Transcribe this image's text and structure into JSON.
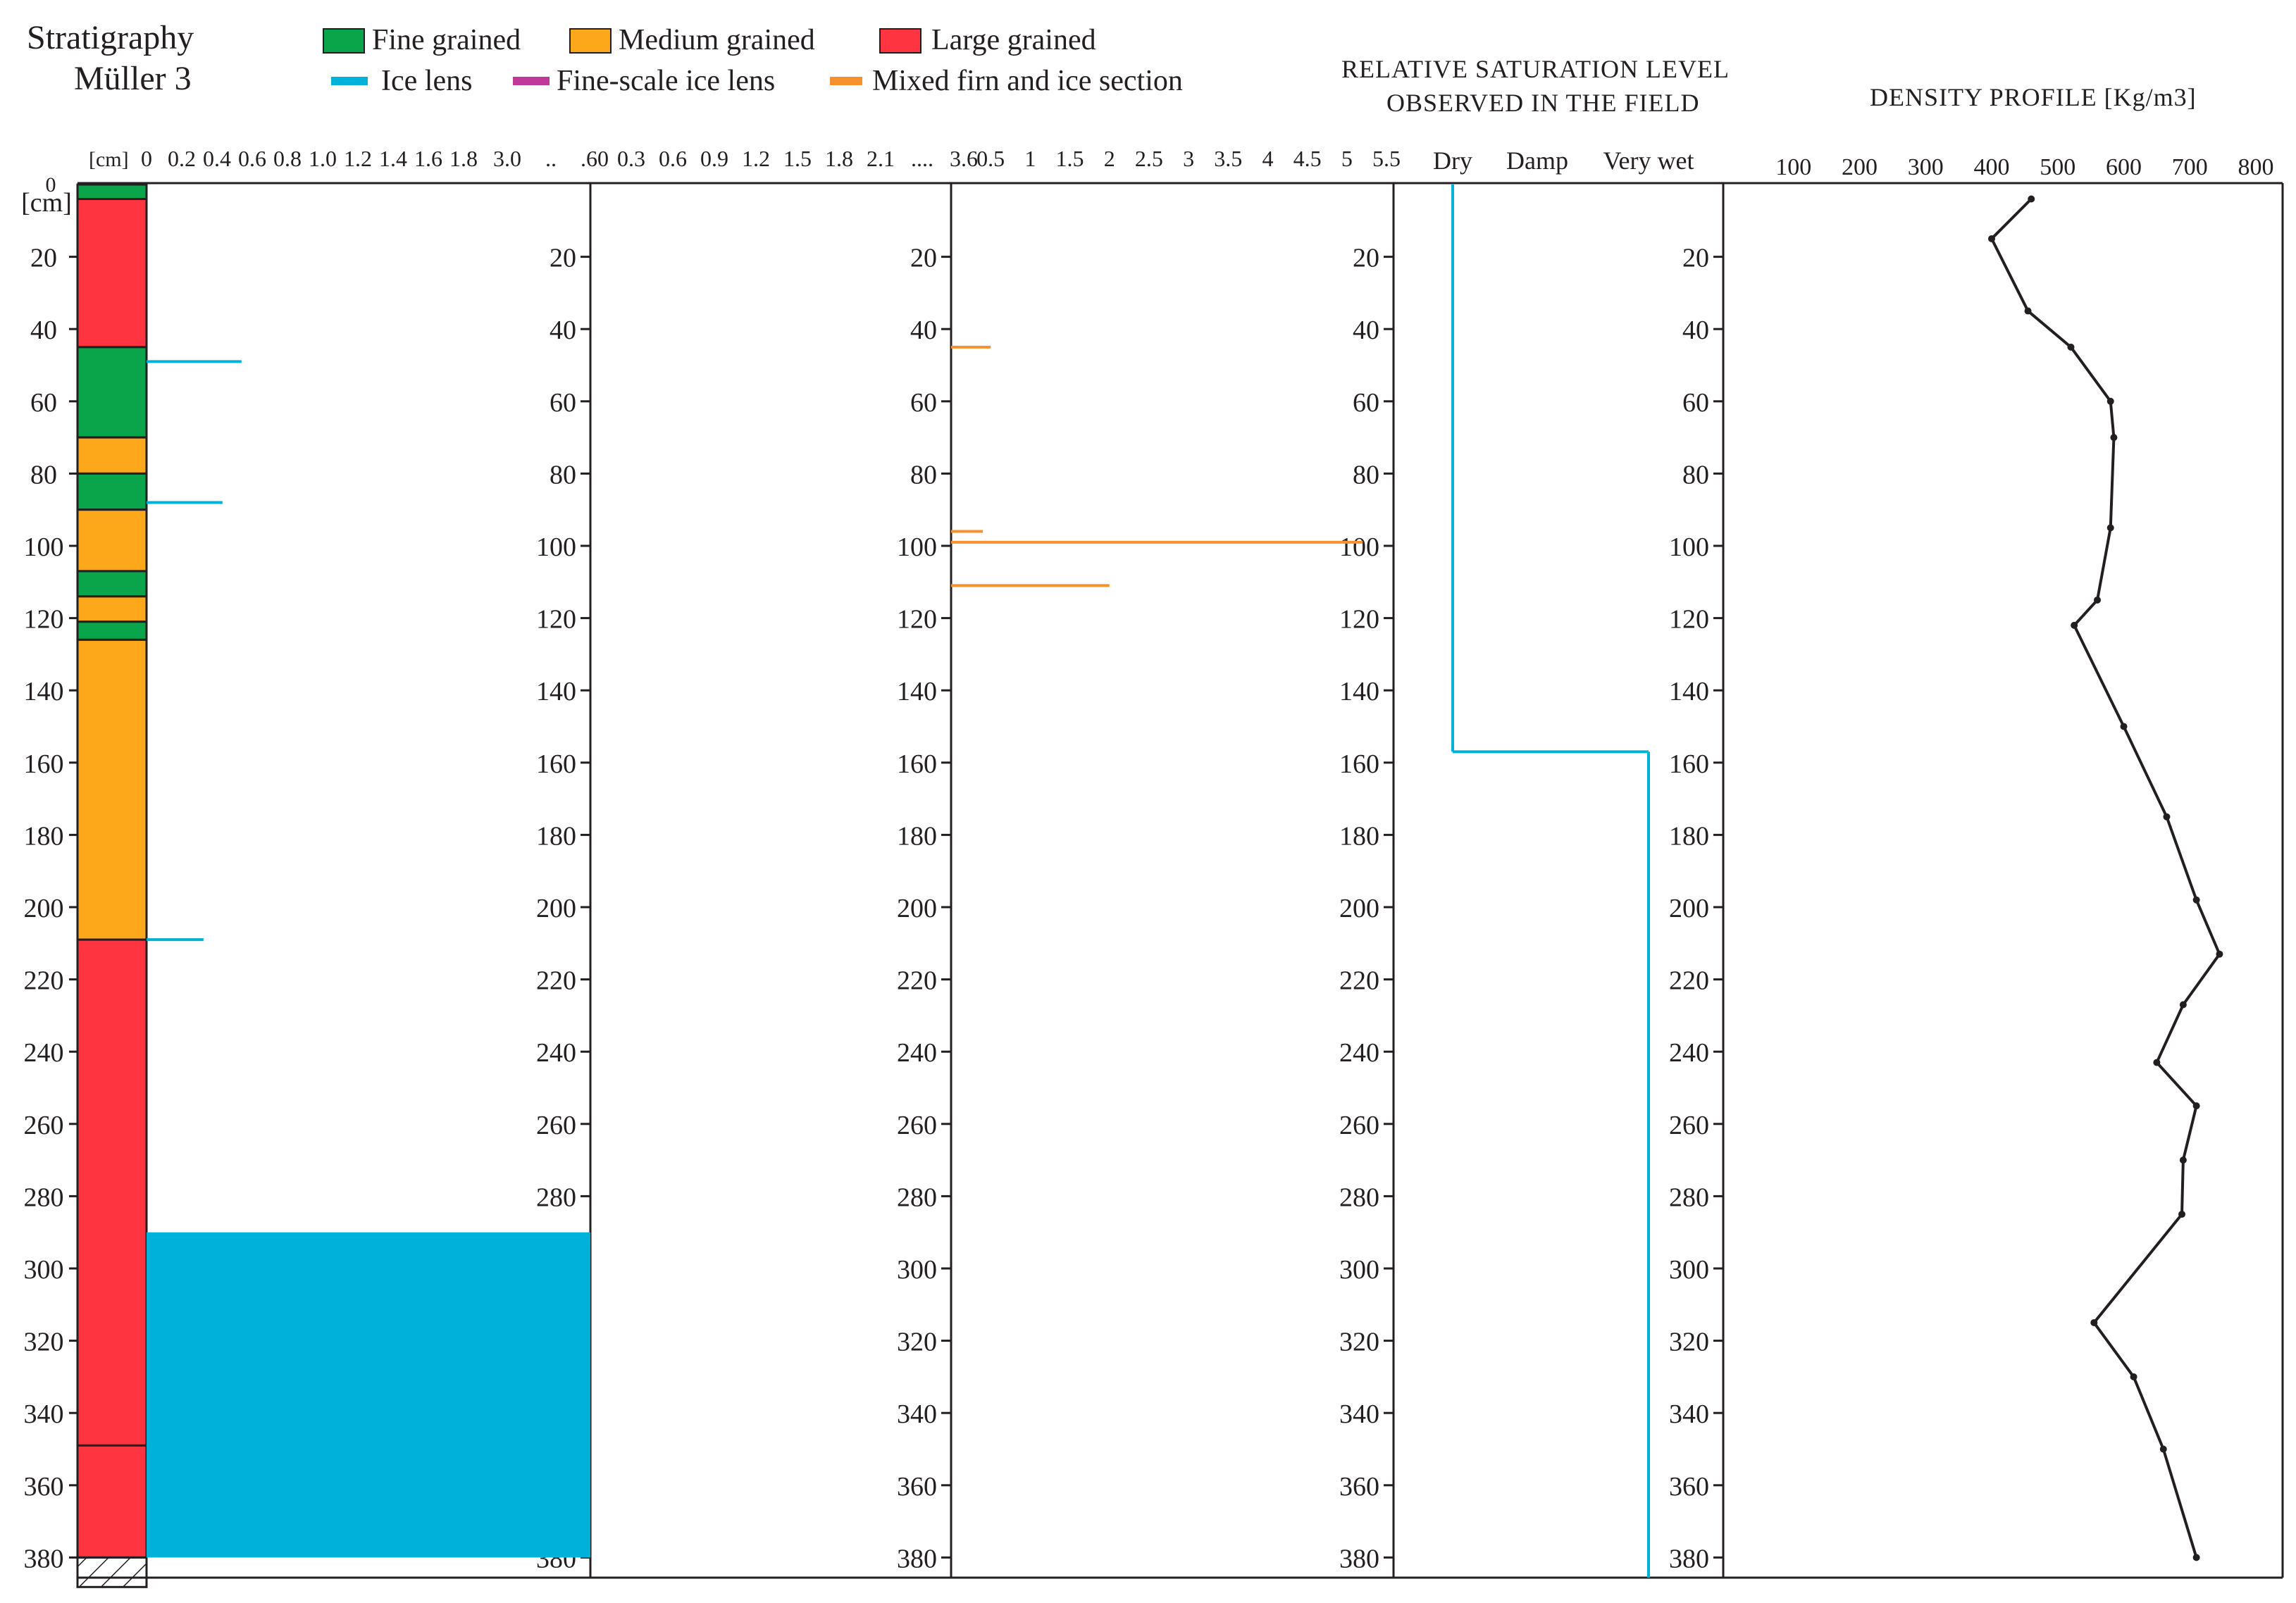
{
  "title": {
    "line1": "Stratigraphy",
    "line2": "Müller 3"
  },
  "legend": {
    "fine": "Fine grained",
    "medium": "Medium grained",
    "large": "Large grained",
    "ice_lens": "Ice lens",
    "fine_ice_lens": "Fine-scale ice lens",
    "mixed": "Mixed firn and ice section"
  },
  "colors": {
    "fine": "#0aa44a",
    "medium": "#fda81a",
    "large": "#fe3440",
    "ice_lens": "#00b2d9",
    "fine_ice_lens": "#c0399a",
    "mixed": "#f7902f",
    "ink": "#231f20"
  },
  "headers": {
    "saturation1": "RELATIVE SATURATION LEVEL",
    "saturation2": "OBSERVED IN THE FIELD",
    "density": "DENSITY PROFILE [Kg/m3]"
  },
  "chart_data": {
    "type": "profile",
    "depth_unit": "[cm]",
    "depth_top_label": "0",
    "depth_ticks": [
      20,
      40,
      60,
      80,
      100,
      120,
      140,
      160,
      180,
      200,
      220,
      240,
      260,
      280,
      300,
      320,
      340,
      360,
      380
    ],
    "stratigraphy": {
      "layers": [
        {
          "top": 0,
          "bottom": 4,
          "grain": "fine"
        },
        {
          "top": 4,
          "bottom": 45,
          "grain": "large"
        },
        {
          "top": 45,
          "bottom": 70,
          "grain": "fine"
        },
        {
          "top": 70,
          "bottom": 80,
          "grain": "medium"
        },
        {
          "top": 80,
          "bottom": 90,
          "grain": "fine"
        },
        {
          "top": 90,
          "bottom": 107,
          "grain": "medium"
        },
        {
          "top": 107,
          "bottom": 114,
          "grain": "fine"
        },
        {
          "top": 114,
          "bottom": 121,
          "grain": "medium"
        },
        {
          "top": 121,
          "bottom": 126,
          "grain": "fine"
        },
        {
          "top": 126,
          "bottom": 209,
          "grain": "medium"
        },
        {
          "top": 209,
          "bottom": 349,
          "grain": "large"
        },
        {
          "top": 349,
          "bottom": 380,
          "grain": "large"
        }
      ],
      "hatched_base": {
        "top": 380,
        "bottom": 387
      }
    },
    "ice_lens_panel": {
      "x_ticks": [
        "0",
        "0.2",
        "0.4",
        "0.6",
        "0.8",
        "1.0",
        "1.2",
        "1.4",
        "1.6",
        "1.8",
        "3.0",
        "..",
        ".60"
      ],
      "x_scale_max": 2.3,
      "lenses": [
        {
          "depth": 49,
          "value": 0.5
        },
        {
          "depth": 88,
          "value": 0.4
        },
        {
          "depth": 209,
          "value": 0.3
        }
      ],
      "ice_section": {
        "top": 290,
        "bottom": 380
      }
    },
    "fine_lens_panel": {
      "x_ticks": [
        "0.3",
        "0.6",
        "0.9",
        "1.2",
        "1.5",
        "1.8",
        "2.1",
        "....",
        "3.6"
      ],
      "lenses": []
    },
    "mixed_panel": {
      "x_ticks": [
        "0.5",
        "1",
        "1.5",
        "2",
        "2.5",
        "3",
        "3.5",
        "4",
        "4.5",
        "5",
        "5.5"
      ],
      "x_max": 5.5,
      "sections": [
        {
          "depth": 45,
          "value": 0.5
        },
        {
          "depth": 96,
          "value": 0.4
        },
        {
          "depth": 99,
          "value": 5.2
        },
        {
          "depth": 111,
          "value": 2.0
        }
      ]
    },
    "saturation": {
      "categories": [
        "Dry",
        "Damp",
        "Very wet"
      ],
      "steps": [
        {
          "top": 0,
          "bottom": 157,
          "level": "Dry"
        },
        {
          "top": 157,
          "bottom": 387,
          "level": "Very wet"
        }
      ]
    },
    "density": {
      "x_ticks": [
        100,
        200,
        300,
        400,
        500,
        600,
        700,
        800
      ],
      "x_range": [
        0,
        800
      ],
      "points": [
        {
          "depth": 4,
          "value": 460
        },
        {
          "depth": 15,
          "value": 400
        },
        {
          "depth": 35,
          "value": 455
        },
        {
          "depth": 45,
          "value": 520
        },
        {
          "depth": 60,
          "value": 580
        },
        {
          "depth": 70,
          "value": 585
        },
        {
          "depth": 95,
          "value": 580
        },
        {
          "depth": 115,
          "value": 560
        },
        {
          "depth": 122,
          "value": 525
        },
        {
          "depth": 150,
          "value": 600
        },
        {
          "depth": 175,
          "value": 665
        },
        {
          "depth": 198,
          "value": 710
        },
        {
          "depth": 213,
          "value": 745
        },
        {
          "depth": 227,
          "value": 690
        },
        {
          "depth": 243,
          "value": 650
        },
        {
          "depth": 255,
          "value": 710
        },
        {
          "depth": 270,
          "value": 690
        },
        {
          "depth": 285,
          "value": 688
        },
        {
          "depth": 315,
          "value": 555
        },
        {
          "depth": 330,
          "value": 615
        },
        {
          "depth": 350,
          "value": 660
        },
        {
          "depth": 380,
          "value": 710
        }
      ]
    }
  }
}
